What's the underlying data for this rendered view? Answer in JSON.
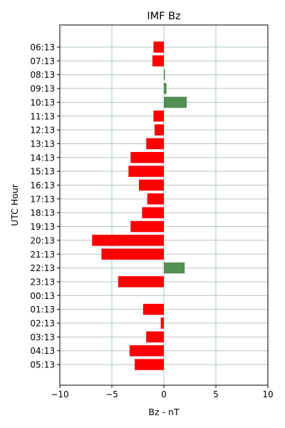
{
  "chart_data": {
    "type": "bar",
    "orientation": "horizontal",
    "title": "IMF Bz",
    "xlabel": "Bz - nT",
    "ylabel": "UTC Hour",
    "xlim": [
      -10,
      10
    ],
    "x_ticks": [
      -10,
      -5,
      0,
      5,
      10
    ],
    "x_tick_labels": [
      "−10",
      "−5",
      "0",
      "5",
      "10"
    ],
    "grid": true,
    "categories": [
      "06:13",
      "07:13",
      "08:13",
      "09:13",
      "10:13",
      "11:13",
      "12:13",
      "13:13",
      "14:13",
      "15:13",
      "16:13",
      "17:13",
      "18:13",
      "19:13",
      "20:13",
      "21:13",
      "22:13",
      "23:13",
      "00:13",
      "01:13",
      "02:13",
      "03:13",
      "04:13",
      "05:13"
    ],
    "values": [
      -1.0,
      -1.1,
      0.1,
      0.25,
      2.2,
      -1.0,
      -0.9,
      -1.7,
      -3.2,
      -3.4,
      -2.4,
      -1.6,
      -2.1,
      -3.2,
      -6.9,
      -6.0,
      2.0,
      -4.4,
      0.0,
      -2.0,
      -0.3,
      -1.7,
      -3.3,
      -2.8
    ],
    "colors": {
      "negative": "#ff0000",
      "positive": "#548f54"
    }
  }
}
